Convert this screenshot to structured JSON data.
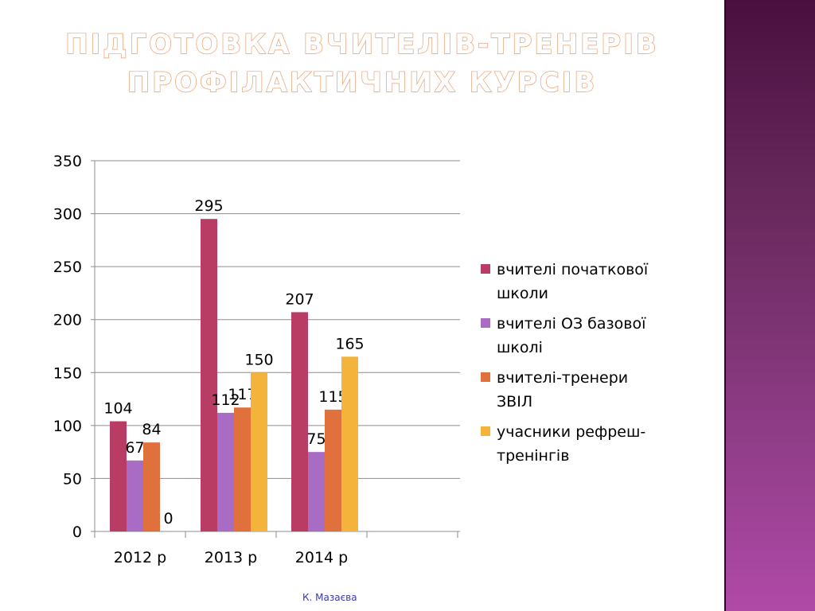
{
  "slide": {
    "title_line1": "ПІДГОТОВКА ВЧИТЕЛІВ-ТРЕНЕРІВ",
    "title_line2": "ПРОФІЛАКТИЧНИХ КУРСІВ",
    "footer": "К. Мазаєва",
    "colors": {
      "title_outline": "#eb9c6e",
      "side_band_top": "#4a0f3f",
      "side_band_bottom": "#b04aa8",
      "footer": "#3a3aa8"
    }
  },
  "chart_data": {
    "type": "bar",
    "categories": [
      "2012  р",
      "2013 р",
      "2014 р"
    ],
    "series": [
      {
        "name": "вчителі початкової школи",
        "values": [
          104,
          295,
          207
        ],
        "color": "#b83c64"
      },
      {
        "name": "вчителі ОЗ базової школі",
        "values": [
          67,
          112,
          75
        ],
        "color": "#a86cc4"
      },
      {
        "name": "вчителі-тренери ЗВІЛ",
        "values": [
          84,
          117,
          115
        ],
        "color": "#e0703c"
      },
      {
        "name": "учасники рефреш-тренінгів",
        "values": [
          0,
          150,
          165
        ],
        "color": "#f4b43c"
      }
    ],
    "data_labels": true,
    "ylim": [
      0,
      350
    ],
    "yticks": [
      0,
      50,
      100,
      150,
      200,
      250,
      300,
      350
    ],
    "grid": true,
    "legend_position": "right",
    "xlabel": "",
    "ylabel": ""
  }
}
